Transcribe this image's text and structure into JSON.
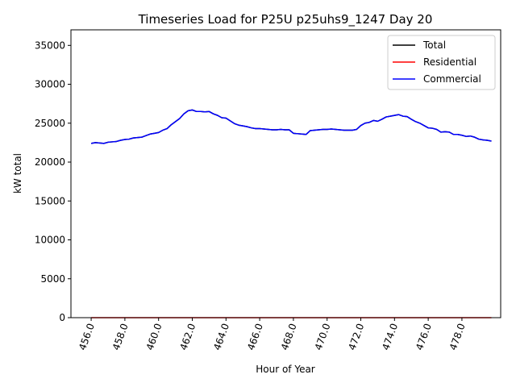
{
  "chart_data": {
    "type": "line",
    "title": "Timeseries Load for P25U p25uhs9_1247  Day 20",
    "xlabel": "Hour of Year",
    "ylabel": "kW total",
    "xlim": [
      454.8,
      480.3
    ],
    "ylim": [
      0,
      37000
    ],
    "xticks": [
      456,
      458,
      460,
      462,
      464,
      466,
      468,
      470,
      472,
      474,
      476,
      478
    ],
    "xtick_labels": [
      "456.0",
      "458.0",
      "460.0",
      "462.0",
      "464.0",
      "466.0",
      "468.0",
      "470.0",
      "472.0",
      "474.0",
      "476.0",
      "478.0"
    ],
    "yticks": [
      0,
      5000,
      10000,
      15000,
      20000,
      25000,
      30000,
      35000
    ],
    "ytick_labels": [
      "0",
      "5000",
      "10000",
      "15000",
      "20000",
      "25000",
      "30000",
      "35000"
    ],
    "legend_position": "top-right",
    "x": [
      456.0,
      456.25,
      456.5,
      456.75,
      457.0,
      457.25,
      457.5,
      457.75,
      458.0,
      458.25,
      458.5,
      458.75,
      459.0,
      459.25,
      459.5,
      459.75,
      460.0,
      460.25,
      460.5,
      460.75,
      461.0,
      461.25,
      461.5,
      461.75,
      462.0,
      462.25,
      462.5,
      462.75,
      463.0,
      463.25,
      463.5,
      463.75,
      464.0,
      464.25,
      464.5,
      464.75,
      465.0,
      465.25,
      465.5,
      465.75,
      466.0,
      466.25,
      466.5,
      466.75,
      467.0,
      467.25,
      467.5,
      467.75,
      468.0,
      468.25,
      468.5,
      468.75,
      469.0,
      469.25,
      469.5,
      469.75,
      470.0,
      470.25,
      470.5,
      470.75,
      471.0,
      471.25,
      471.5,
      471.75,
      472.0,
      472.25,
      472.5,
      472.75,
      473.0,
      473.25,
      473.5,
      473.75,
      474.0,
      474.25,
      474.5,
      474.75,
      475.0,
      475.25,
      475.5,
      475.75,
      476.0,
      476.25,
      476.5,
      476.75,
      477.0,
      477.25,
      477.5,
      477.75,
      478.0,
      478.25,
      478.5,
      478.75,
      479.0,
      479.25,
      479.5,
      479.75
    ],
    "series": [
      {
        "name": "Total",
        "color": "#000000",
        "values": [
          22400,
          22500,
          22450,
          22400,
          22550,
          22600,
          22650,
          22800,
          22900,
          22950,
          23100,
          23150,
          23200,
          23400,
          23600,
          23700,
          23800,
          24100,
          24300,
          24800,
          25200,
          25600,
          26200,
          26600,
          26700,
          26500,
          26500,
          26450,
          26500,
          26200,
          26000,
          25700,
          25650,
          25300,
          24950,
          24750,
          24650,
          24550,
          24400,
          24300,
          24300,
          24250,
          24200,
          24150,
          24150,
          24200,
          24150,
          24150,
          23700,
          23650,
          23600,
          23550,
          24050,
          24100,
          24150,
          24200,
          24200,
          24250,
          24200,
          24150,
          24100,
          24100,
          24100,
          24200,
          24700,
          25000,
          25100,
          25350,
          25250,
          25500,
          25800,
          25900,
          26000,
          26100,
          25900,
          25850,
          25500,
          25200,
          25000,
          24700,
          24400,
          24350,
          24200,
          23850,
          23900,
          23850,
          23550,
          23550,
          23450,
          23300,
          23350,
          23200,
          22950,
          22850,
          22800,
          22700
        ]
      },
      {
        "name": "Residential",
        "color": "#ff0000",
        "values": [
          0,
          0,
          0,
          0,
          0,
          0,
          0,
          0,
          0,
          0,
          0,
          0,
          0,
          0,
          0,
          0,
          0,
          0,
          0,
          0,
          0,
          0,
          0,
          0,
          0,
          0,
          0,
          0,
          0,
          0,
          0,
          0,
          0,
          0,
          0,
          0,
          0,
          0,
          0,
          0,
          0,
          0,
          0,
          0,
          0,
          0,
          0,
          0,
          0,
          0,
          0,
          0,
          0,
          0,
          0,
          0,
          0,
          0,
          0,
          0,
          0,
          0,
          0,
          0,
          0,
          0,
          0,
          0,
          0,
          0,
          0,
          0,
          0,
          0,
          0,
          0,
          0,
          0,
          0,
          0,
          0,
          0,
          0,
          0,
          0,
          0,
          0,
          0,
          0,
          0,
          0,
          0,
          0,
          0,
          0,
          0
        ]
      },
      {
        "name": "Commercial",
        "color": "#0000ff",
        "values": [
          22400,
          22500,
          22450,
          22400,
          22550,
          22600,
          22650,
          22800,
          22900,
          22950,
          23100,
          23150,
          23200,
          23400,
          23600,
          23700,
          23800,
          24100,
          24300,
          24800,
          25200,
          25600,
          26200,
          26600,
          26700,
          26500,
          26500,
          26450,
          26500,
          26200,
          26000,
          25700,
          25650,
          25300,
          24950,
          24750,
          24650,
          24550,
          24400,
          24300,
          24300,
          24250,
          24200,
          24150,
          24150,
          24200,
          24150,
          24150,
          23700,
          23650,
          23600,
          23550,
          24050,
          24100,
          24150,
          24200,
          24200,
          24250,
          24200,
          24150,
          24100,
          24100,
          24100,
          24200,
          24700,
          25000,
          25100,
          25350,
          25250,
          25500,
          25800,
          25900,
          26000,
          26100,
          25900,
          25850,
          25500,
          25200,
          25000,
          24700,
          24400,
          24350,
          24200,
          23850,
          23900,
          23850,
          23550,
          23550,
          23450,
          23300,
          23350,
          23200,
          22950,
          22850,
          22800,
          22700
        ]
      }
    ]
  }
}
